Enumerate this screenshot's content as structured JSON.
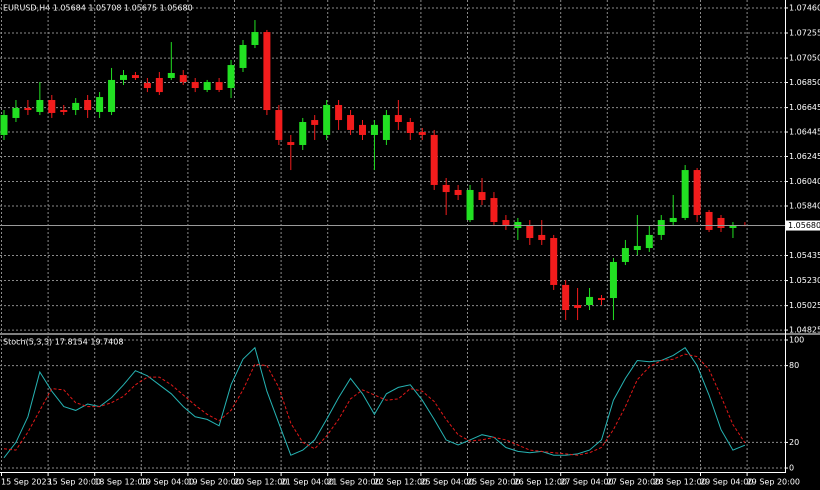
{
  "chart_data": [
    {
      "type": "candlestick",
      "title": "EURUSD,H4  1.05684 1.05708 1.05675 1.05680",
      "up_color": "#22e022",
      "down_color": "#f21c1c",
      "grid": true,
      "ylim": [
        1.04801,
        1.07525
      ],
      "yticks": [
        {
          "value": 1.0746,
          "label": "1.07460"
        },
        {
          "value": 1.07255,
          "label": "1.07255"
        },
        {
          "value": 1.0705,
          "label": "1.07050"
        },
        {
          "value": 1.0685,
          "label": "1.06850"
        },
        {
          "value": 1.06645,
          "label": "1.06645"
        },
        {
          "value": 1.06445,
          "label": "1.06445"
        },
        {
          "value": 1.06245,
          "label": "1.06245"
        },
        {
          "value": 1.0604,
          "label": "1.06040"
        },
        {
          "value": 1.0584,
          "label": "1.05840"
        },
        {
          "value": 1.05435,
          "label": "1.05435"
        },
        {
          "value": 1.0523,
          "label": "1.05230"
        },
        {
          "value": 1.05025,
          "label": "1.05025"
        },
        {
          "value": 1.04825,
          "label": "1.04825"
        }
      ],
      "last_price": {
        "value": 1.0568,
        "label": "1.05680"
      },
      "x_labels": [
        "15 Sep 2023",
        "15 Sep 20:00",
        "18 Sep 12:00",
        "19 Sep 04:00",
        "19 Sep 20:00",
        "20 Sep 12:00",
        "21 Sep 04:00",
        "21 Sep 20:00",
        "22 Sep 12:00",
        "25 Sep 04:00",
        "25 Sep 20:00",
        "26 Sep 12:00",
        "27 Sep 04:00",
        "27 Sep 20:00",
        "28 Sep 12:00",
        "29 Sep 04:00",
        "29 Sep 20:00"
      ],
      "open": [
        1.06421,
        1.0656,
        1.06642,
        1.06609,
        1.06707,
        1.06625,
        1.06625,
        1.06707,
        1.06609,
        1.06609,
        1.06871,
        1.06911,
        1.06846,
        1.06887,
        1.06887,
        1.06911,
        1.06854,
        1.06789,
        1.06854,
        1.06805,
        1.06969,
        1.07157,
        1.07263,
        1.06625,
        1.06363,
        1.06339,
        1.06543,
        1.06421,
        1.06666,
        1.06584,
        1.06503,
        1.06421,
        1.0638,
        1.06584,
        1.06527,
        1.06445,
        1.06421,
        1.06012,
        1.05971,
        1.05725,
        1.05954,
        1.05905,
        1.05725,
        1.0566,
        1.05684,
        1.05603,
        1.05578,
        1.05194,
        1.0503,
        1.0503,
        1.05087,
        1.05087,
        1.05382,
        1.0548,
        1.05496,
        1.05603,
        1.05709,
        1.05742,
        1.06134,
        1.05791,
        1.05742,
        1.0566,
        1.05684
      ],
      "high": [
        1.06625,
        1.06707,
        1.06707,
        1.06854,
        1.06748,
        1.06666,
        1.06723,
        1.06748,
        1.06772,
        1.06969,
        1.06952,
        1.06936,
        1.06887,
        1.06936,
        1.07181,
        1.06952,
        1.06887,
        1.06871,
        1.06887,
        1.07034,
        1.07198,
        1.07361,
        1.0728,
        1.06666,
        1.06421,
        1.0656,
        1.06584,
        1.06707,
        1.06707,
        1.06625,
        1.06543,
        1.06543,
        1.06625,
        1.06707,
        1.0656,
        1.06478,
        1.06462,
        1.06069,
        1.06012,
        1.06012,
        1.06069,
        1.05954,
        1.05766,
        1.05742,
        1.05725,
        1.05725,
        1.05603,
        1.05235,
        1.05169,
        1.05169,
        1.05112,
        1.05415,
        1.05562,
        1.05766,
        1.05684,
        1.05766,
        1.0593,
        1.06175,
        1.06151,
        1.05807,
        1.05766,
        1.05709,
        1.05708
      ],
      "low": [
        1.0638,
        1.06527,
        1.06584,
        1.06584,
        1.0656,
        1.06584,
        1.06584,
        1.0656,
        1.0656,
        1.06584,
        1.0683,
        1.06871,
        1.06772,
        1.06748,
        1.06871,
        1.0683,
        1.06772,
        1.06772,
        1.06772,
        1.06723,
        1.06936,
        1.07132,
        1.06584,
        1.06339,
        1.06134,
        1.06298,
        1.0638,
        1.0638,
        1.06462,
        1.06421,
        1.0638,
        1.06134,
        1.06339,
        1.06462,
        1.0638,
        1.0638,
        1.05971,
        1.05766,
        1.05889,
        1.05709,
        1.05848,
        1.05684,
        1.05644,
        1.05562,
        1.05521,
        1.05521,
        1.05153,
        1.04907,
        1.04907,
        1.04989,
        1.0503,
        1.04907,
        1.05357,
        1.05439,
        1.05464,
        1.05562,
        1.05684,
        1.05725,
        1.05709,
        1.05627,
        1.05627,
        1.05578,
        1.05675
      ],
      "close": [
        1.06584,
        1.06642,
        1.06625,
        1.06707,
        1.06601,
        1.06609,
        1.06683,
        1.06625,
        1.06731,
        1.06871,
        1.06911,
        1.06887,
        1.06805,
        1.06772,
        1.06928,
        1.06854,
        1.06805,
        1.06854,
        1.06789,
        1.06993,
        1.07157,
        1.07263,
        1.06625,
        1.0638,
        1.06339,
        1.06527,
        1.06503,
        1.06666,
        1.06543,
        1.06462,
        1.06421,
        1.06503,
        1.06584,
        1.06527,
        1.06437,
        1.06421,
        1.06012,
        1.05954,
        1.0593,
        1.05971,
        1.05889,
        1.05709,
        1.05684,
        1.05709,
        1.05578,
        1.05562,
        1.05194,
        1.04989,
        1.05006,
        1.05096,
        1.05071,
        1.05382,
        1.05496,
        1.05513,
        1.05603,
        1.05725,
        1.05742,
        1.06134,
        1.05766,
        1.05644,
        1.0566,
        1.05684,
        1.0568
      ]
    },
    {
      "type": "line",
      "title": "Stoch(5,3,3) 17.8154 19.7408",
      "grid": true,
      "ylim": [
        -3.1,
        103.9
      ],
      "yticks": [
        0,
        20,
        80,
        100
      ],
      "series": [
        {
          "color": "#26b3b3",
          "style": "solid",
          "values": [
            8,
            20,
            40,
            75,
            60,
            48,
            45,
            50,
            48,
            55,
            65,
            76,
            72,
            65,
            58,
            48,
            40,
            38,
            33,
            65,
            85,
            94,
            60,
            35,
            10,
            14,
            22,
            38,
            55,
            70,
            58,
            42,
            58,
            63,
            65,
            53,
            38,
            22,
            18,
            22,
            26,
            24,
            16,
            13,
            12,
            13,
            10,
            10,
            11,
            14,
            22,
            53,
            70,
            84,
            83,
            84,
            88,
            94,
            80,
            57,
            30,
            14,
            17.8154
          ]
        },
        {
          "color": "#e01818",
          "style": "dashed",
          "values": [
            15,
            14,
            28,
            45,
            62,
            61,
            51,
            48,
            48,
            51,
            56,
            65,
            71,
            71,
            65,
            57,
            49,
            42,
            37,
            45,
            61,
            81,
            80,
            63,
            35,
            20,
            15,
            25,
            38,
            54,
            61,
            57,
            53,
            54,
            62,
            60,
            52,
            38,
            26,
            21,
            22,
            24,
            22,
            18,
            14,
            13,
            12,
            11,
            10,
            12,
            16,
            30,
            48,
            69,
            79,
            84,
            85,
            89,
            87,
            77,
            56,
            34,
            19.7408
          ]
        }
      ]
    }
  ]
}
